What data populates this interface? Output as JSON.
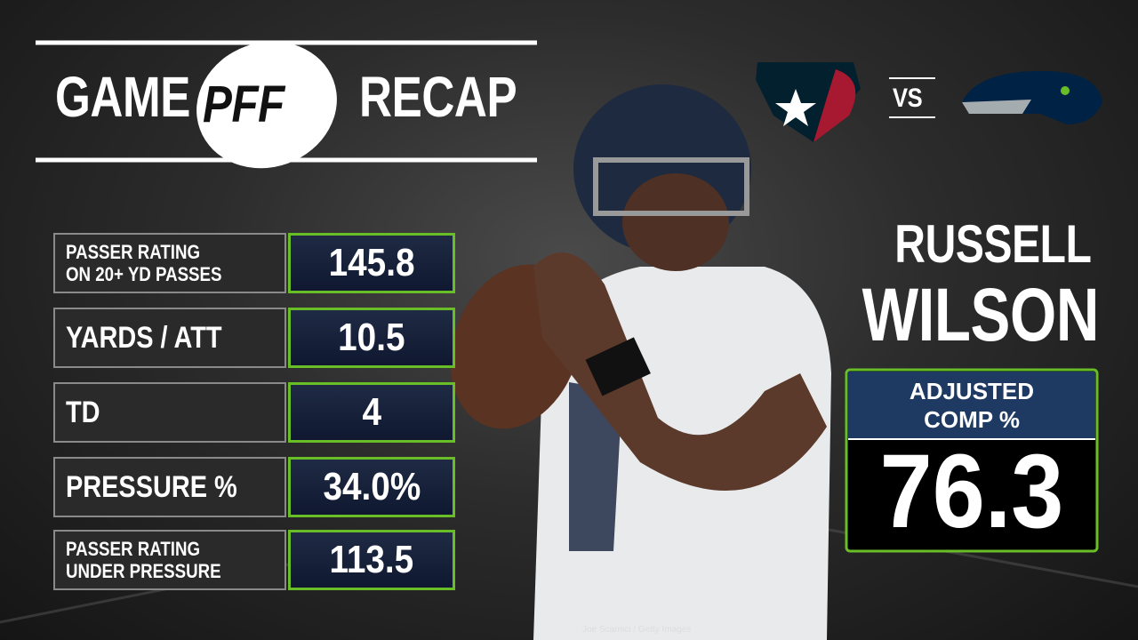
{
  "header": {
    "left": "GAME",
    "logo": "PFF",
    "right": "RECAP"
  },
  "matchup": {
    "vs": "VS"
  },
  "stats": [
    {
      "label": [
        "PASSER RATING",
        "ON 20+ YD PASSES"
      ],
      "value": "145.8"
    },
    {
      "label": [
        "YARDS / ATT"
      ],
      "value": "10.5"
    },
    {
      "label": [
        "TD"
      ],
      "value": "4"
    },
    {
      "label": [
        "PRESSURE %"
      ],
      "value": "34.0%"
    },
    {
      "label": [
        "PASSER RATING",
        "UNDER PRESSURE"
      ],
      "value": "113.5"
    }
  ],
  "player": {
    "first": "RUSSELL",
    "last": "WILSON"
  },
  "featured": {
    "label": [
      "ADJUSTED",
      "COMP %"
    ],
    "value": "76.3"
  },
  "credit": "Joe Scarnici / Getty Images"
}
